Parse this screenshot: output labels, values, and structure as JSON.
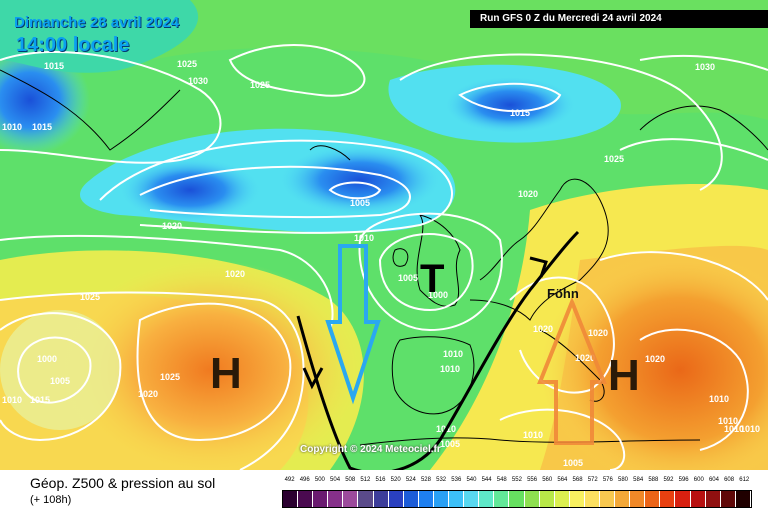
{
  "header": {
    "date": "Dimanche 28 avril 2024",
    "local_time": "14:00 locale",
    "run": "Run GFS 0 Z du Mercredi 24 avril 2024"
  },
  "pressure_systems": [
    {
      "letter": "T"
    },
    {
      "letter": "H"
    },
    {
      "letter": "H"
    }
  ],
  "annotation": {
    "foehn": "Föhn"
  },
  "isobar_labels": [
    "1015",
    "1025",
    "1030",
    "1025",
    "1010",
    "1015",
    "1010",
    "1015",
    "1030",
    "1025",
    "1005",
    "1020",
    "1020",
    "1020",
    "1025",
    "1020",
    "1010",
    "1005",
    "1000",
    "1005",
    "1000",
    "1025",
    "1020",
    "1015",
    "1010",
    "1010",
    "1010",
    "1005",
    "1010",
    "1020",
    "1020",
    "1020",
    "1010",
    "1010",
    "1010",
    "1010",
    "1005"
  ],
  "copyright": "Copyright © 2024 Meteociel.fr",
  "footer": {
    "title": "Géop. Z500 & pression au sol",
    "subtitle": "(+ 108h)"
  },
  "legend": {
    "values": [
      "492",
      "496",
      "500",
      "504",
      "508",
      "512",
      "516",
      "520",
      "524",
      "528",
      "532",
      "536",
      "540",
      "544",
      "548",
      "552",
      "556",
      "560",
      "564",
      "568",
      "572",
      "576",
      "580",
      "584",
      "588",
      "592",
      "596",
      "600",
      "604",
      "608",
      "612"
    ],
    "colors": [
      "#2b0030",
      "#4a0a50",
      "#6a1a70",
      "#86308a",
      "#9c4a9c",
      "#5a4a8a",
      "#3c3c9a",
      "#2a40c0",
      "#1c5cd8",
      "#1e7ff0",
      "#29a0f5",
      "#3cc0f8",
      "#58d8f0",
      "#5ee8c8",
      "#62e898",
      "#66e060",
      "#8ee050",
      "#b8e848",
      "#dcf050",
      "#f8f060",
      "#fce060",
      "#f8c850",
      "#f4a838",
      "#f08828",
      "#ec6418",
      "#e84010",
      "#d82010",
      "#b81010",
      "#901010",
      "#600808",
      "#200000"
    ]
  }
}
